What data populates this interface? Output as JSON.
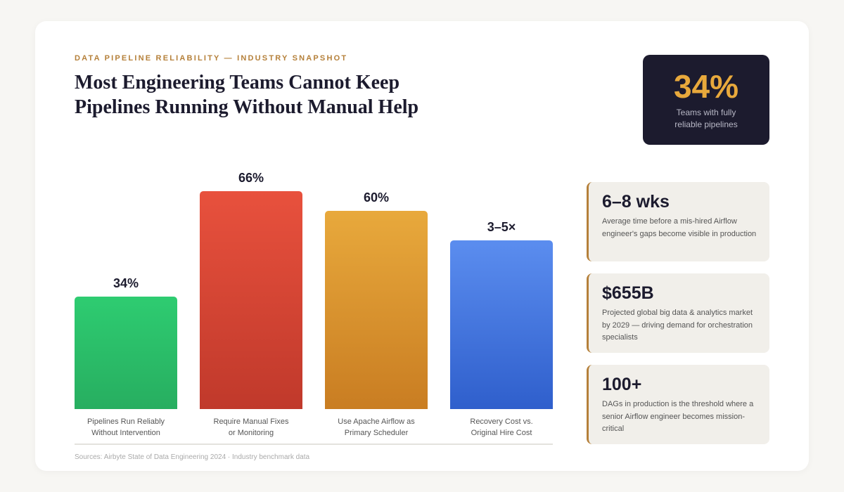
{
  "eyebrow": "DATA PIPELINE RELIABILITY — INDUSTRY SNAPSHOT",
  "title": "Most Engineering Teams Cannot Keep Pipelines Running Without Manual Help",
  "callout": {
    "value": "34%",
    "label": "Teams with fully reliable pipelines"
  },
  "stats": [
    {
      "value": "6–8 wks",
      "description": "Average time before a mis-hired Airflow engineer's gaps become visible in production"
    },
    {
      "value": "$655B",
      "description": "Projected global big data & analytics market by 2029 — driving demand for orchestration specialists"
    },
    {
      "value": "100+",
      "description": "DAGs in production is the threshold where a senior Airflow engineer becomes mission-critical"
    }
  ],
  "chart_data": {
    "type": "bar",
    "categories": [
      "Pipelines Run Reliably Without Intervention",
      "Require Manual Fixes or Monitoring",
      "Use Apache Airflow as Primary Scheduler",
      "Recovery Cost vs. Original Hire Cost"
    ],
    "values": [
      34,
      66,
      60,
      null
    ],
    "value_labels": [
      "34%",
      "66%",
      "60%",
      "3–5×"
    ],
    "colors": [
      [
        "#2ecc71",
        "#27ae60"
      ],
      [
        "#e8513d",
        "#c0392b"
      ],
      [
        "#e8a93c",
        "#c97d22"
      ],
      [
        "#5b8def",
        "#2f5fcc"
      ]
    ]
  },
  "source": "Sources: Airbyte State of Data Engineering 2024 · Industry benchmark data"
}
